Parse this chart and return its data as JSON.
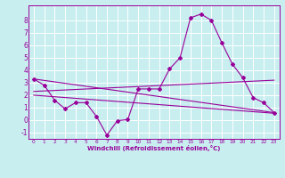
{
  "background_color": "#c8eef0",
  "grid_color": "#ffffff",
  "line_color": "#990099",
  "xlabel": "Windchill (Refroidissement éolien,°C)",
  "xlim": [
    -0.5,
    23.5
  ],
  "ylim": [
    -1.5,
    9.2
  ],
  "yticks": [
    -1,
    0,
    1,
    2,
    3,
    4,
    5,
    6,
    7,
    8
  ],
  "xticks": [
    0,
    1,
    2,
    3,
    4,
    5,
    6,
    7,
    8,
    9,
    10,
    11,
    12,
    13,
    14,
    15,
    16,
    17,
    18,
    19,
    20,
    21,
    22,
    23
  ],
  "line1_x": [
    0,
    1,
    2,
    3,
    4,
    5,
    6,
    7,
    8,
    9,
    10,
    11,
    12,
    13,
    14,
    15,
    16,
    17,
    18,
    19,
    20,
    21,
    22,
    23
  ],
  "line1_y": [
    3.3,
    2.8,
    1.6,
    0.9,
    1.4,
    1.4,
    0.3,
    -1.2,
    -0.05,
    0.05,
    2.5,
    2.5,
    2.5,
    4.1,
    5.0,
    8.2,
    8.5,
    8.0,
    6.2,
    4.5,
    3.4,
    1.8,
    1.4,
    0.6
  ],
  "line2_x": [
    0,
    23
  ],
  "line2_y": [
    3.3,
    0.6
  ],
  "line3_x": [
    0,
    23
  ],
  "line3_y": [
    2.3,
    3.2
  ],
  "line4_x": [
    0,
    23
  ],
  "line4_y": [
    2.0,
    0.55
  ]
}
